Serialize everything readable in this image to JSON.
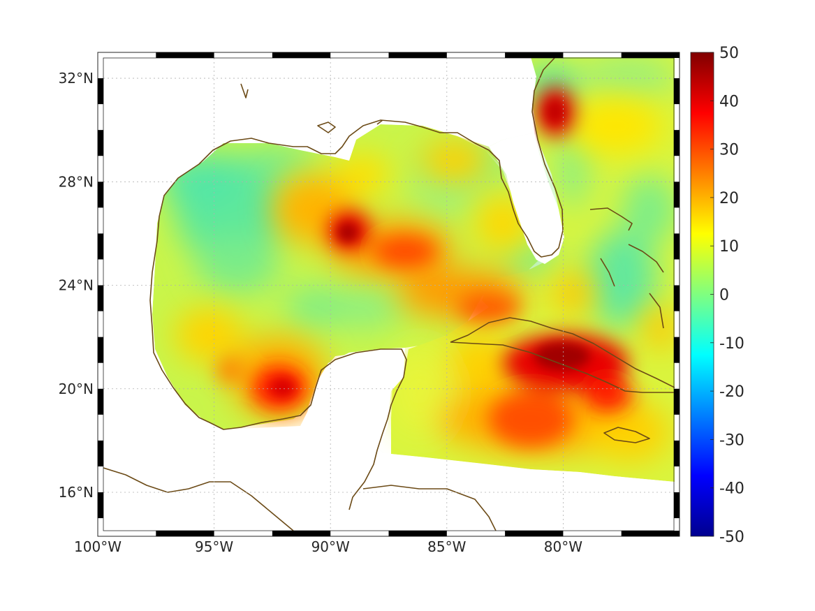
{
  "map": {
    "projection": "lon-lat",
    "lon_range": [
      -100,
      -75
    ],
    "lat_range": [
      14.3,
      33
    ],
    "grid": "dotted",
    "frame": "alternating black-white border",
    "x_ticks": [
      {
        "value": -100,
        "label": "100°W"
      },
      {
        "value": -95,
        "label": "95°W"
      },
      {
        "value": -90,
        "label": "90°W"
      },
      {
        "value": -85,
        "label": "85°W"
      },
      {
        "value": -80,
        "label": "80°W"
      }
    ],
    "y_ticks": [
      {
        "value": 16,
        "label": "16°N"
      },
      {
        "value": 20,
        "label": "20°N"
      },
      {
        "value": 24,
        "label": "24°N"
      },
      {
        "value": 28,
        "label": "28°N"
      },
      {
        "value": 32,
        "label": "32°N"
      }
    ],
    "coastline_color": "#6b4a16",
    "ocean_field": {
      "description_colors": "jet colormap",
      "hotspots": [
        {
          "lon": -80.5,
          "lat": 21.3,
          "value": 48
        },
        {
          "lon": -92.2,
          "lat": 19.9,
          "value": 38
        },
        {
          "lon": -89.2,
          "lat": 26.2,
          "value": 40
        },
        {
          "lon": -80.6,
          "lat": 30.5,
          "value": 40
        },
        {
          "lon": -86.2,
          "lat": 25.3,
          "value": 30
        },
        {
          "lon": -90.5,
          "lat": 27.0,
          "value": 28
        },
        {
          "lon": -84.0,
          "lat": 23.4,
          "value": 28
        },
        {
          "lon": -81.5,
          "lat": 18.5,
          "value": 30
        },
        {
          "lon": -93.5,
          "lat": 21.5,
          "value": 24
        },
        {
          "lon": -96.5,
          "lat": 21.5,
          "value": 18
        },
        {
          "lon": -83.0,
          "lat": 26.0,
          "value": 16
        }
      ],
      "coolspots": [
        {
          "lon": -95.5,
          "lat": 28.5,
          "value": 3
        },
        {
          "lon": -94.0,
          "lat": 26.0,
          "value": 4
        },
        {
          "lon": -89.0,
          "lat": 24.0,
          "value": 5
        },
        {
          "lon": -81.0,
          "lat": 32.0,
          "value": 3
        },
        {
          "lon": -78.0,
          "lat": 25.0,
          "value": 4
        }
      ]
    }
  },
  "colorbar": {
    "min": -50,
    "max": 50,
    "colormap": "jet",
    "tick_labels": [
      "50",
      "40",
      "30",
      "20",
      "10",
      "0",
      "-10",
      "-20",
      "-30",
      "-40",
      "-50"
    ]
  }
}
